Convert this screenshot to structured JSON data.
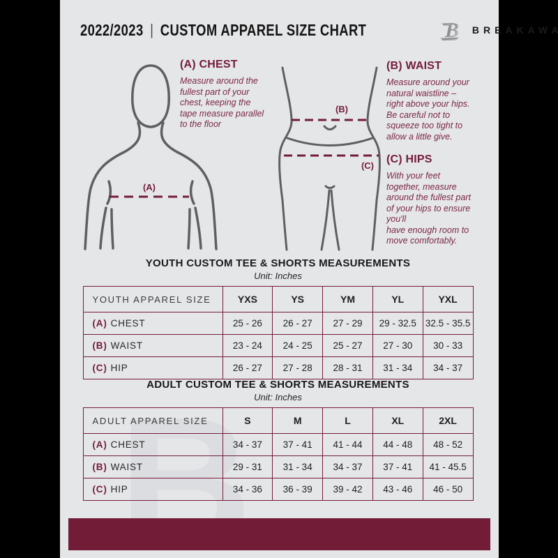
{
  "header": {
    "year": "2022/2023",
    "separator": "|",
    "title": "CUSTOM APPAREL SIZE CHART",
    "brand": "BREAKAWAY",
    "logo_letter": "B"
  },
  "measure_sections": {
    "chest": {
      "title": "(A) CHEST",
      "description": "Measure around the\nfullest part of your\nchest, keeping the\ntape measure parallel\nto the floor"
    },
    "waist": {
      "title": "(B) WAIST",
      "description": "Measure around your\nnatural waistline –\nright above your hips.\nBe careful not to\nsqueeze too tight to\nallow a little give."
    },
    "hips": {
      "title": "(C) HIPS",
      "description": "With your feet\ntogether, measure\naround the fullest part\nof your hips to ensure\nyou'll\nhave enough room to\nmove comfortably."
    }
  },
  "diagram_labels": {
    "chest": "(A)",
    "waist": "(B)",
    "hip": "(C)"
  },
  "youth_table": {
    "title": "YOUTH CUSTOM TEE & SHORTS MEASUREMENTS",
    "unit": "Unit: Inches",
    "size_header": "YOUTH APPAREL SIZE",
    "sizes": [
      "YXS",
      "YS",
      "YM",
      "YL",
      "YXL"
    ],
    "rows": [
      {
        "prefix": "(A)",
        "label": "CHEST",
        "values": [
          "25 - 26",
          "26 - 27",
          "27 - 29",
          "29 - 32.5",
          "32.5 - 35.5"
        ]
      },
      {
        "prefix": "(B)",
        "label": "WAIST",
        "values": [
          "23 - 24",
          "24 - 25",
          "25 - 27",
          "27 - 30",
          "30 - 33"
        ]
      },
      {
        "prefix": "(C)",
        "label": "HIP",
        "values": [
          "26 - 27",
          "27 - 28",
          "28 - 31",
          "31 - 34",
          "34 - 37"
        ]
      }
    ]
  },
  "adult_table": {
    "title": "ADULT CUSTOM TEE & SHORTS MEASUREMENTS",
    "unit": "Unit: Inches",
    "size_header": "ADULT APPAREL SIZE",
    "sizes": [
      "S",
      "M",
      "L",
      "XL",
      "2XL"
    ],
    "rows": [
      {
        "prefix": "(A)",
        "label": "CHEST",
        "values": [
          "34 - 37",
          "37 - 41",
          "41 - 44",
          "44 - 48",
          "48 - 52"
        ]
      },
      {
        "prefix": "(B)",
        "label": "WAIST",
        "values": [
          "29 - 31",
          "31 - 34",
          "34 - 37",
          "37 - 41",
          "41 - 45.5"
        ]
      },
      {
        "prefix": "(C)",
        "label": "HIP",
        "values": [
          "34 - 36",
          "36 - 39",
          "39 - 42",
          "43 - 46",
          "46 - 50"
        ]
      }
    ]
  },
  "watermark": {
    "letter": "B"
  },
  "colors": {
    "maroon": "#731c37",
    "maroon_text": "#7b2746",
    "page_bg": "#e5e6e8",
    "letterbox": "#000000",
    "text_dark": "#1d1d1d",
    "figure_stroke": "#5f5f5f",
    "watermark": "#dcdde1",
    "logo_silver": "#9a9a9a"
  }
}
